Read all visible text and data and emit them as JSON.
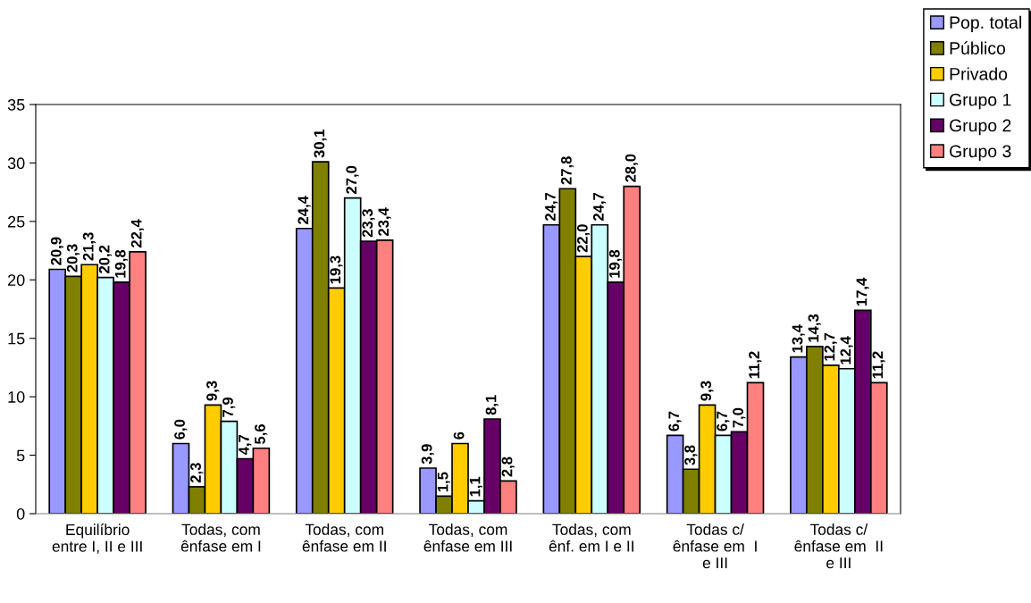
{
  "chart_data": {
    "type": "bar",
    "categories": [
      "Equilíbrio\nentre I, II e III",
      "Todas, com\nênfase em I",
      "Todas, com\nênfase em II",
      "Todas, com\nênfase em III",
      "Todas, com\nênf. em I e II",
      "Todas c/\nênfase em  I\ne III",
      "Todas c/\nênfase em  II\ne III"
    ],
    "series": [
      {
        "name": "Pop. total",
        "color": "#9999ff",
        "values": [
          20.9,
          6.0,
          24.4,
          3.9,
          24.7,
          6.7,
          13.4
        ],
        "value_labels": [
          "20,9",
          "6,0",
          "24,4",
          "3,9",
          "24,7",
          "6,7",
          "13,4"
        ]
      },
      {
        "name": "Público",
        "color": "#808000",
        "values": [
          20.3,
          2.3,
          30.1,
          1.5,
          27.8,
          3.8,
          14.3
        ],
        "value_labels": [
          "20,3",
          "2,3",
          "30,1",
          "1,5",
          "27,8",
          "3,8",
          "14,3"
        ]
      },
      {
        "name": "Privado",
        "color": "#ffcc00",
        "values": [
          21.3,
          9.3,
          19.3,
          6,
          22.0,
          9.3,
          12.7
        ],
        "value_labels": [
          "21,3",
          "9,3",
          "19,3",
          "6",
          "22,0",
          "9,3",
          "12,7"
        ]
      },
      {
        "name": "Grupo 1",
        "color": "#ccffff",
        "values": [
          20.2,
          7.9,
          27.0,
          1.1,
          24.7,
          6.7,
          12.4
        ],
        "value_labels": [
          "20,2",
          "7,9",
          "27,0",
          "1,1",
          "24,7",
          "6,7",
          "12,4"
        ]
      },
      {
        "name": "Grupo 2",
        "color": "#660066",
        "values": [
          19.8,
          4.7,
          23.3,
          8.1,
          19.8,
          7.0,
          17.4
        ],
        "value_labels": [
          "19,8",
          "4,7",
          "23,3",
          "8,1",
          "19,8",
          "7,0",
          "17,4"
        ]
      },
      {
        "name": "Grupo 3",
        "color": "#ff8080",
        "values": [
          22.4,
          5.6,
          23.4,
          2.8,
          28.0,
          11.2,
          11.2
        ],
        "value_labels": [
          "22,4",
          "5,6",
          "23,4",
          "2,8",
          "28,0",
          "11,2",
          "11,2"
        ]
      }
    ],
    "ylim": [
      0,
      35
    ],
    "yticks": [
      0,
      5,
      10,
      15,
      20,
      25,
      30,
      35
    ],
    "legend": "top right"
  }
}
